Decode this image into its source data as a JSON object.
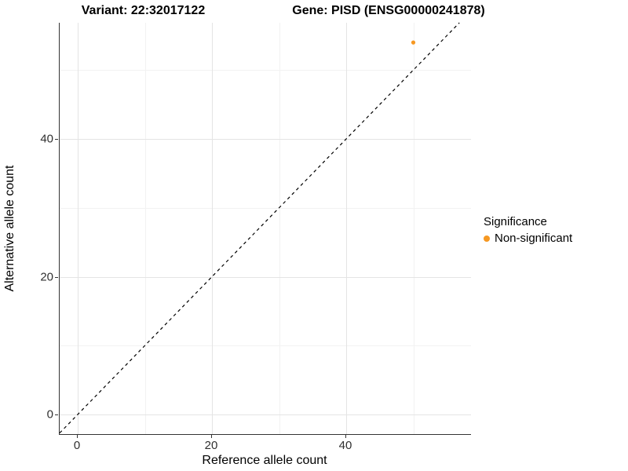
{
  "titles": {
    "left": "Variant: 22:32017122",
    "right": "Gene: PISD (ENSG00000241878)"
  },
  "legend": {
    "title": "Significance",
    "items": [
      {
        "label": "Non-significant",
        "color": "#F69822"
      }
    ]
  },
  "colors": {
    "point": "#F69822",
    "grid_major": "#e4e4e4",
    "grid_minor": "#f2f2f2",
    "axis_line": "#333333",
    "reference_line": "#000000"
  },
  "chart_data": {
    "type": "scatter",
    "title_left": "Variant: 22:32017122",
    "title_right": "Gene: PISD (ENSG00000241878)",
    "xlabel": "Reference allele count",
    "ylabel": "Alternative allele count",
    "x_ticks": [
      0,
      20,
      40
    ],
    "y_ticks": [
      0,
      20,
      40
    ],
    "x_minor_ticks": [
      10,
      30,
      50
    ],
    "y_minor_ticks": [
      10,
      30,
      50
    ],
    "xlim": [
      -2.7,
      58.6
    ],
    "ylim": [
      -2.9,
      56.9
    ],
    "grid": true,
    "legend_position": "right",
    "reference_line": {
      "kind": "identity",
      "slope": 1,
      "intercept": 0,
      "style": "dashed",
      "color": "#000000"
    },
    "series": [
      {
        "name": "Non-significant",
        "color": "#F69822",
        "points": [
          {
            "x": 50,
            "y": 54
          }
        ]
      }
    ]
  }
}
